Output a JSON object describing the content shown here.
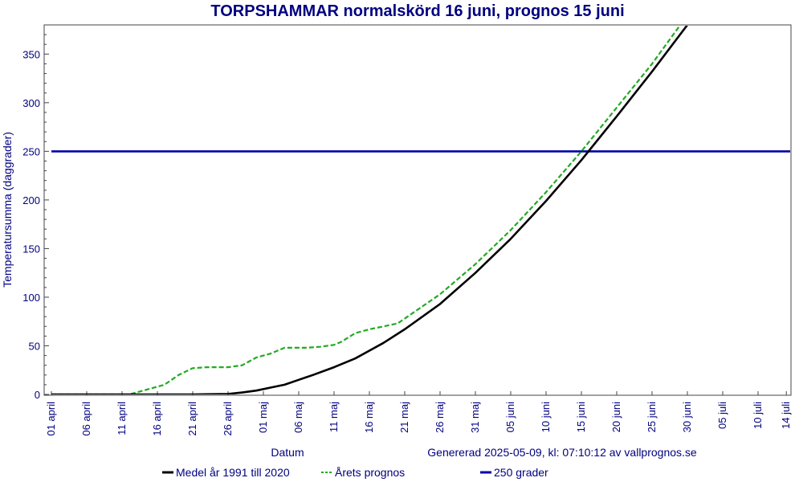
{
  "chart_data": {
    "type": "line",
    "title": "TORPSHAMMAR normalskörd 16 juni, prognos 15 juni",
    "xlabel": "Datum",
    "ylabel": "Temperatursumma (daggrader)",
    "footer": "Genererad 2025-05-09, kl: 07:10:12 av vallprognos.se",
    "xlim": [
      "2025-04-01",
      "2025-07-15"
    ],
    "ylim": [
      0,
      380
    ],
    "y_ticks": [
      0,
      50,
      100,
      150,
      200,
      250,
      300,
      350
    ],
    "x_ticks": [
      {
        "date": "2025-04-01",
        "label": "01 april"
      },
      {
        "date": "2025-04-06",
        "label": "06 april"
      },
      {
        "date": "2025-04-11",
        "label": "11 april"
      },
      {
        "date": "2025-04-16",
        "label": "16 april"
      },
      {
        "date": "2025-04-21",
        "label": "21 april"
      },
      {
        "date": "2025-04-26",
        "label": "26 april"
      },
      {
        "date": "2025-05-01",
        "label": "01 maj"
      },
      {
        "date": "2025-05-06",
        "label": "06 maj"
      },
      {
        "date": "2025-05-11",
        "label": "11 maj"
      },
      {
        "date": "2025-05-16",
        "label": "16 maj"
      },
      {
        "date": "2025-05-21",
        "label": "21 maj"
      },
      {
        "date": "2025-05-26",
        "label": "26 maj"
      },
      {
        "date": "2025-05-31",
        "label": "31 maj"
      },
      {
        "date": "2025-06-05",
        "label": "05 juni"
      },
      {
        "date": "2025-06-10",
        "label": "10 juni"
      },
      {
        "date": "2025-06-15",
        "label": "15 juni"
      },
      {
        "date": "2025-06-20",
        "label": "20 juni"
      },
      {
        "date": "2025-06-25",
        "label": "25 juni"
      },
      {
        "date": "2025-06-30",
        "label": "30 juni"
      },
      {
        "date": "2025-07-05",
        "label": "05 juli"
      },
      {
        "date": "2025-07-10",
        "label": "10 juli"
      },
      {
        "date": "2025-07-14",
        "label": "14 juli"
      }
    ],
    "grid": false,
    "legend_position": "bottom",
    "series": [
      {
        "name": "Medel år 1991 till 2020",
        "color": "#000000",
        "style": "solid",
        "points": [
          [
            "2025-04-01",
            0
          ],
          [
            "2025-04-11",
            0
          ],
          [
            "2025-04-21",
            0
          ],
          [
            "2025-04-26",
            0.5
          ],
          [
            "2025-04-28",
            2
          ],
          [
            "2025-04-30",
            4
          ],
          [
            "2025-05-02",
            7
          ],
          [
            "2025-05-04",
            10
          ],
          [
            "2025-05-06",
            15
          ],
          [
            "2025-05-08",
            20
          ],
          [
            "2025-05-11",
            28
          ],
          [
            "2025-05-14",
            37
          ],
          [
            "2025-05-16",
            45
          ],
          [
            "2025-05-18",
            53
          ],
          [
            "2025-05-21",
            67
          ],
          [
            "2025-05-26",
            93
          ],
          [
            "2025-05-31",
            125
          ],
          [
            "2025-06-05",
            160
          ],
          [
            "2025-06-10",
            199
          ],
          [
            "2025-06-15",
            241
          ],
          [
            "2025-06-20",
            286
          ],
          [
            "2025-06-25",
            332
          ],
          [
            "2025-06-30",
            380
          ],
          [
            "2025-07-01",
            390
          ]
        ]
      },
      {
        "name": "Årets prognos",
        "color": "#22aa22",
        "style": "dashed",
        "points": [
          [
            "2025-04-01",
            0
          ],
          [
            "2025-04-12",
            0
          ],
          [
            "2025-04-14",
            4
          ],
          [
            "2025-04-17",
            10
          ],
          [
            "2025-04-19",
            20
          ],
          [
            "2025-04-21",
            27
          ],
          [
            "2025-04-23",
            28
          ],
          [
            "2025-04-26",
            28
          ],
          [
            "2025-04-28",
            30
          ],
          [
            "2025-04-30",
            38
          ],
          [
            "2025-05-02",
            42
          ],
          [
            "2025-05-04",
            48
          ],
          [
            "2025-05-07",
            48
          ],
          [
            "2025-05-09",
            49
          ],
          [
            "2025-05-11",
            51
          ],
          [
            "2025-05-12",
            54
          ],
          [
            "2025-05-14",
            63
          ],
          [
            "2025-05-16",
            67
          ],
          [
            "2025-05-18",
            70
          ],
          [
            "2025-05-20",
            73
          ],
          [
            "2025-05-22",
            83
          ],
          [
            "2025-05-26",
            103
          ],
          [
            "2025-05-31",
            134
          ],
          [
            "2025-06-05",
            169
          ],
          [
            "2025-06-10",
            208
          ],
          [
            "2025-06-15",
            250
          ],
          [
            "2025-06-20",
            295
          ],
          [
            "2025-06-25",
            340
          ],
          [
            "2025-06-30",
            390
          ]
        ]
      },
      {
        "name": "250 grader",
        "color": "#0000aa",
        "style": "solid",
        "points": [
          [
            "2025-04-01",
            250
          ],
          [
            "2025-07-15",
            250
          ]
        ]
      }
    ]
  }
}
